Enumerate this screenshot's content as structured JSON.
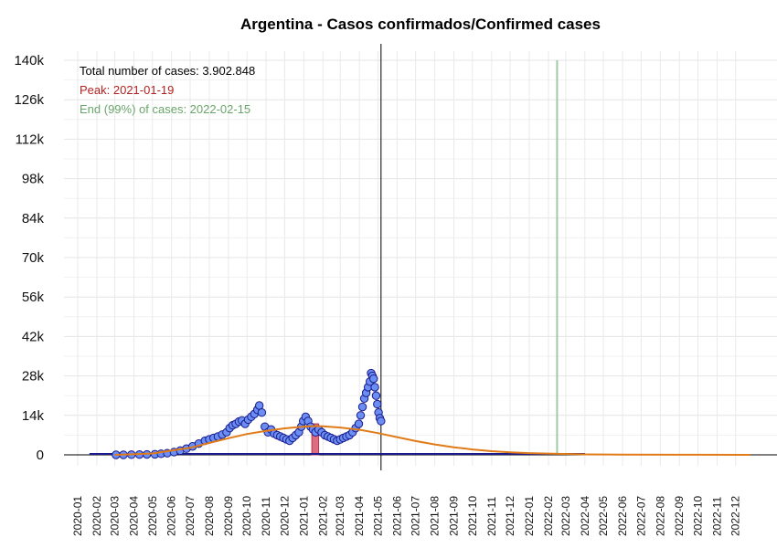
{
  "chart_data": {
    "type": "scatter",
    "title": "Argentina - Casos confirmados/Confirmed cases",
    "xlabel": "",
    "ylabel": "",
    "ylim": [
      0,
      140000
    ],
    "y_ticks": [
      0,
      14000,
      28000,
      42000,
      56000,
      70000,
      84000,
      98000,
      112000,
      126000,
      140000
    ],
    "y_tick_labels": [
      "0",
      "14k",
      "28k",
      "42k",
      "56k",
      "70k",
      "84k",
      "98k",
      "112k",
      "126k",
      "140k"
    ],
    "x_range": [
      "2020-01-01",
      "2022-12-31"
    ],
    "x_tick_labels": [
      "2020-01",
      "2020-02",
      "2020-03",
      "2020-04",
      "2020-05",
      "2020-06",
      "2020-07",
      "2020-08",
      "2020-09",
      "2020-10",
      "2020-11",
      "2020-12",
      "2021-01",
      "2021-02",
      "2021-03",
      "2021-04",
      "2021-05",
      "2021-06",
      "2021-07",
      "2021-08",
      "2021-09",
      "2021-10",
      "2021-11",
      "2021-12",
      "2022-01",
      "2022-02",
      "2022-03",
      "2022-04",
      "2022-05",
      "2022-06",
      "2022-07",
      "2022-08",
      "2022-09",
      "2022-10",
      "2022-11",
      "2022-12"
    ],
    "grid": true,
    "annotations": {
      "total": "Total number of cases: 3.902.848",
      "peak": "Peak: 2021-01-19",
      "end": "End (99%) of cases: 2022-02-15"
    },
    "colors": {
      "points_fill": "#6b8ef2",
      "points_stroke": "#1a1a8c",
      "cumulative_line": "#1a1a8c",
      "fit_curve": "#e07b18",
      "peak_bar": "#d9536b",
      "end_line": "#9fc9a8",
      "annotation_total": "#000000",
      "annotation_peak": "#b22222",
      "annotation_end": "#6aa56a"
    },
    "vertical_lines": {
      "last_data_date": "2021-05-06",
      "end_date": "2022-02-15"
    },
    "peak_bar": {
      "start": "2021-01-14",
      "end": "2021-01-25",
      "value": 11000
    },
    "series": [
      {
        "kind": "points",
        "x": [
          "2020-03-03",
          "2020-03-15",
          "2020-03-28",
          "2020-04-10",
          "2020-04-22",
          "2020-05-05",
          "2020-05-15",
          "2020-05-25",
          "2020-06-05",
          "2020-06-15",
          "2020-06-25",
          "2020-07-05",
          "2020-07-15",
          "2020-07-25",
          "2020-08-01",
          "2020-08-08",
          "2020-08-15",
          "2020-08-22",
          "2020-08-29",
          "2020-09-03",
          "2020-09-08",
          "2020-09-13",
          "2020-09-18",
          "2020-09-23",
          "2020-09-28",
          "2020-10-03",
          "2020-10-08",
          "2020-10-13",
          "2020-10-18",
          "2020-10-21",
          "2020-10-25",
          "2020-10-30",
          "2020-11-04",
          "2020-11-09",
          "2020-11-14",
          "2020-11-19",
          "2020-11-24",
          "2020-11-29",
          "2020-12-04",
          "2020-12-09",
          "2020-12-14",
          "2020-12-19",
          "2020-12-24",
          "2020-12-28",
          "2020-12-31",
          "2021-01-04",
          "2021-01-08",
          "2021-01-12",
          "2021-01-16",
          "2021-01-20",
          "2021-01-25",
          "2021-01-30",
          "2021-02-04",
          "2021-02-09",
          "2021-02-14",
          "2021-02-19",
          "2021-02-24",
          "2021-03-01",
          "2021-03-06",
          "2021-03-11",
          "2021-03-16",
          "2021-03-21",
          "2021-03-26",
          "2021-03-31",
          "2021-04-03",
          "2021-04-06",
          "2021-04-09",
          "2021-04-12",
          "2021-04-15",
          "2021-04-18",
          "2021-04-20",
          "2021-04-22",
          "2021-04-24",
          "2021-04-26",
          "2021-04-28",
          "2021-04-30",
          "2021-05-02",
          "2021-05-04",
          "2021-05-06"
        ],
        "y": [
          0,
          0,
          50,
          100,
          150,
          200,
          400,
          600,
          1000,
          1500,
          2200,
          3000,
          4000,
          5000,
          5500,
          6000,
          6500,
          7200,
          8000,
          9500,
          10500,
          11000,
          11800,
          12200,
          11000,
          12500,
          13500,
          14500,
          16000,
          17500,
          15000,
          10000,
          8000,
          9000,
          7500,
          7000,
          6500,
          6000,
          5500,
          5000,
          6000,
          7000,
          8000,
          10000,
          12000,
          13500,
          12000,
          10000,
          9000,
          8000,
          9000,
          8000,
          7000,
          6500,
          6000,
          5500,
          5000,
          5500,
          6000,
          6500,
          7000,
          8000,
          9500,
          11000,
          14000,
          17000,
          20000,
          22000,
          24000,
          26000,
          29000,
          28000,
          27000,
          24000,
          21000,
          18000,
          15000,
          13000,
          12000
        ]
      },
      {
        "kind": "fit_curve",
        "x": [
          "2020-03-01",
          "2020-05-01",
          "2020-07-01",
          "2020-08-01",
          "2020-09-01",
          "2020-10-01",
          "2020-11-01",
          "2020-12-01",
          "2021-01-01",
          "2021-01-19",
          "2021-02-01",
          "2021-03-01",
          "2021-04-01",
          "2021-05-01",
          "2021-06-01",
          "2021-07-01",
          "2021-08-01",
          "2021-09-01",
          "2021-10-01",
          "2021-11-01",
          "2021-12-01",
          "2022-01-01",
          "2022-02-15",
          "2022-04-01",
          "2022-06-01",
          "2022-09-01",
          "2022-12-25"
        ],
        "y": [
          0,
          500,
          2500,
          4200,
          5900,
          7400,
          8500,
          9400,
          10000,
          10200,
          10100,
          9700,
          8900,
          7700,
          6300,
          4900,
          3700,
          2700,
          1900,
          1300,
          900,
          600,
          350,
          150,
          60,
          20,
          5
        ]
      }
    ]
  }
}
